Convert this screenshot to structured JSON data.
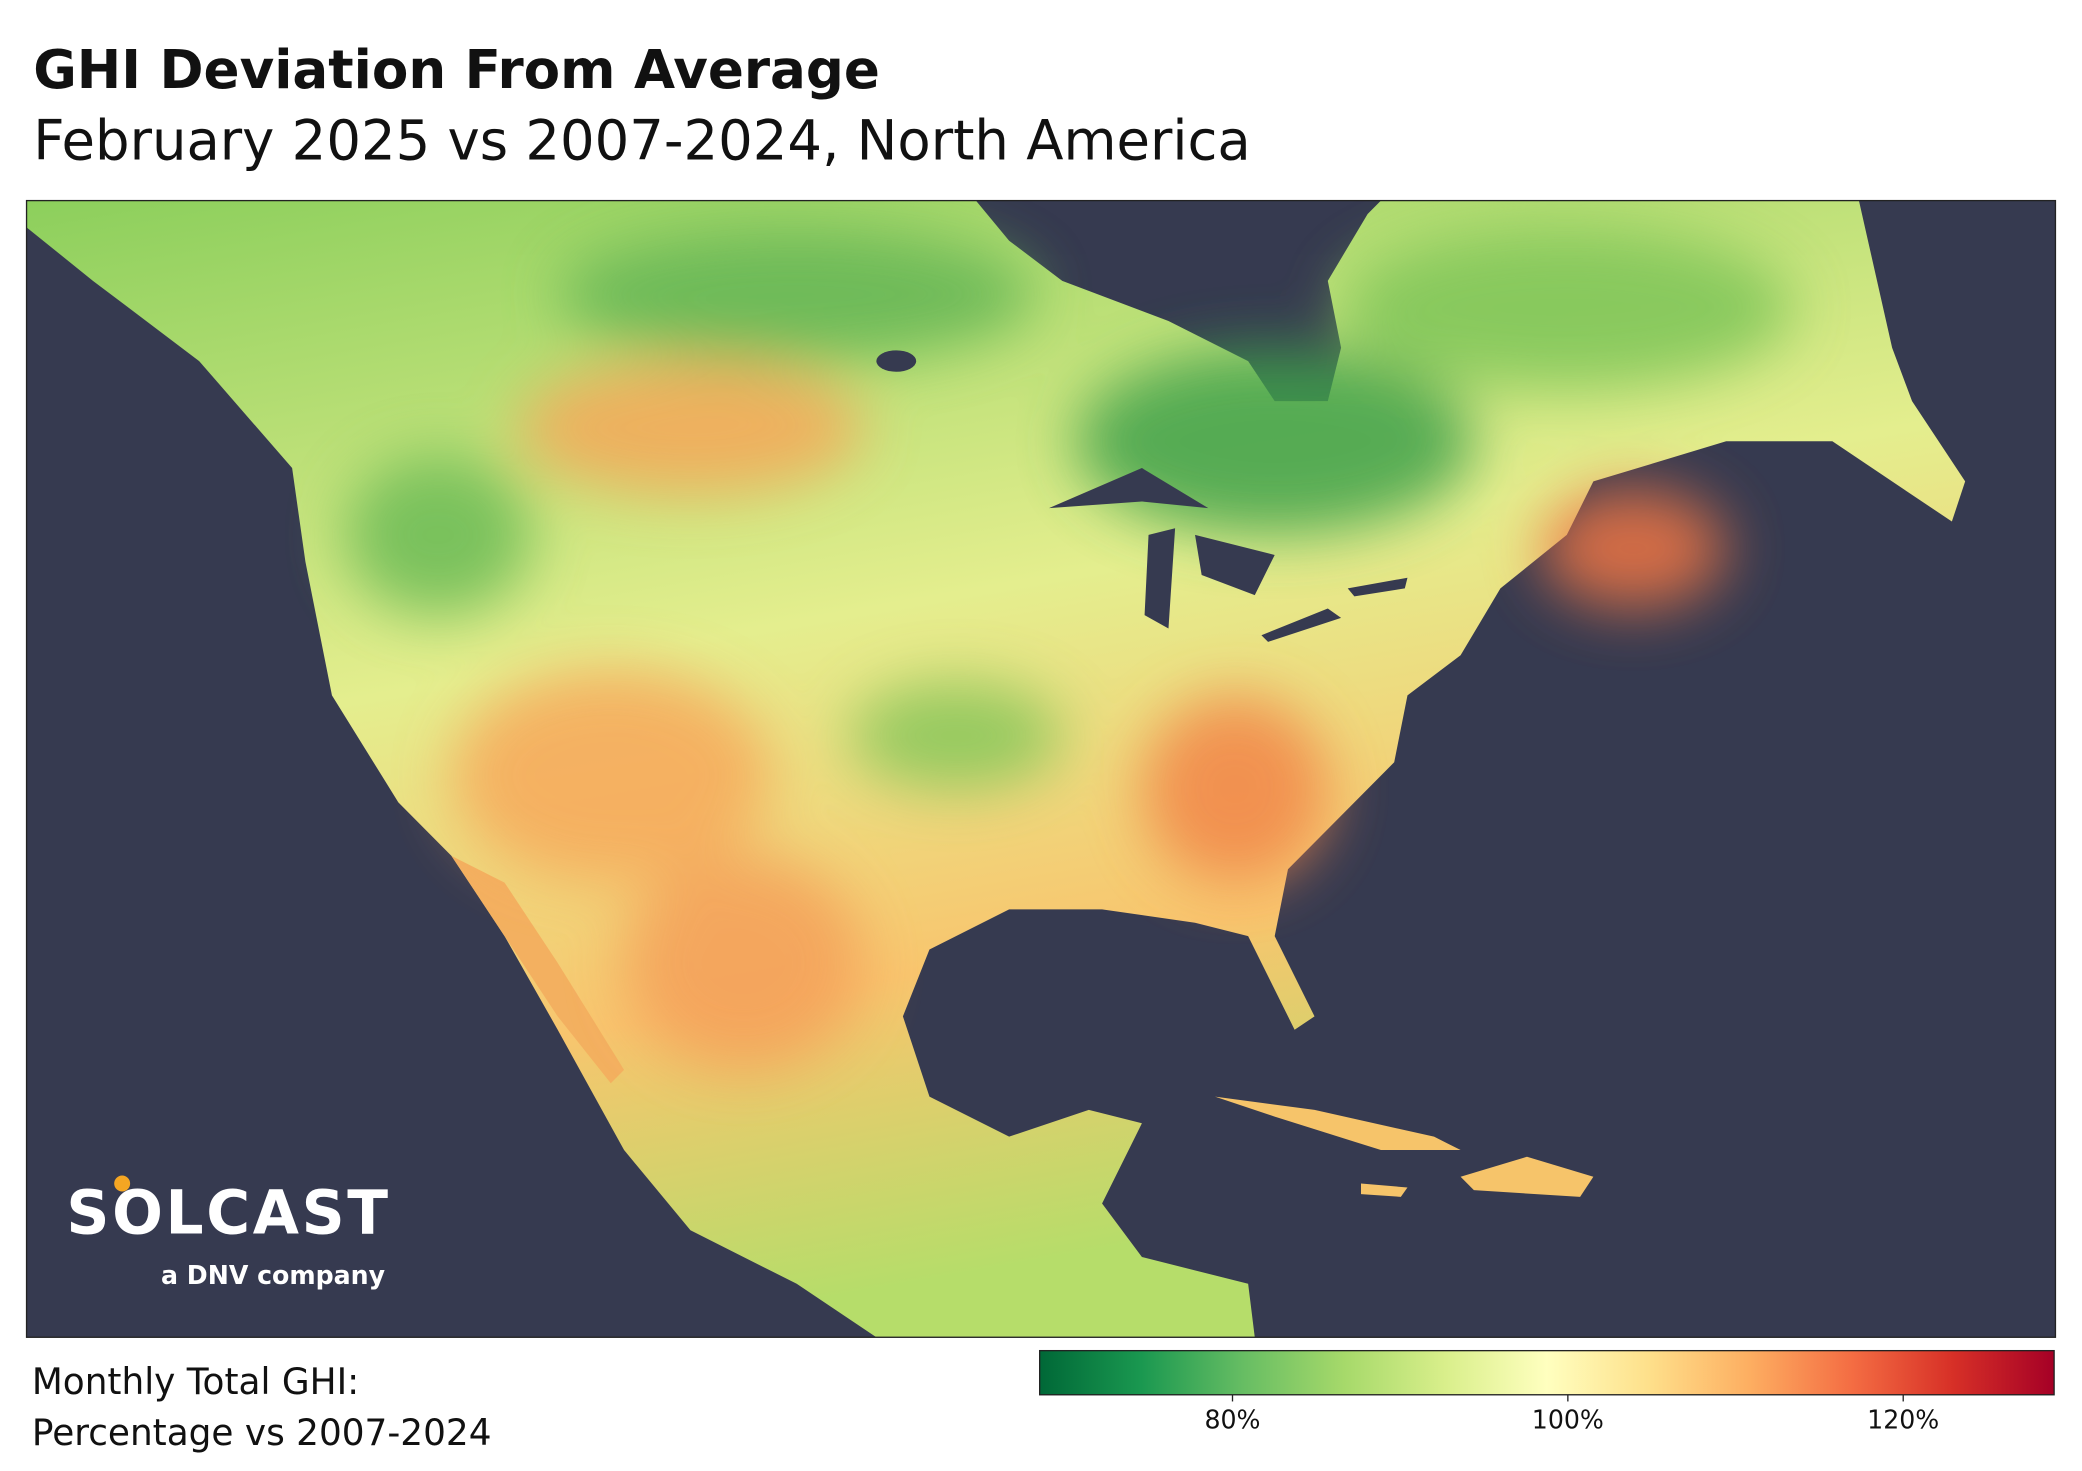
{
  "header": {
    "title": "GHI Deviation From Average",
    "subtitle": "February 2025 vs 2007-2024, North America"
  },
  "logo": {
    "brand": "SOLCAST",
    "tagline": "a DNV company"
  },
  "legend": {
    "title_lines": [
      "Monthly Total GHI:",
      "Percentage vs 2007-2024"
    ],
    "colorbar": {
      "lim": [
        68.5,
        129
      ],
      "ticks": [
        {
          "value": 80,
          "label": "80%"
        },
        {
          "value": 100,
          "label": "100%"
        },
        {
          "value": 120,
          "label": "120%"
        }
      ]
    }
  }
}
